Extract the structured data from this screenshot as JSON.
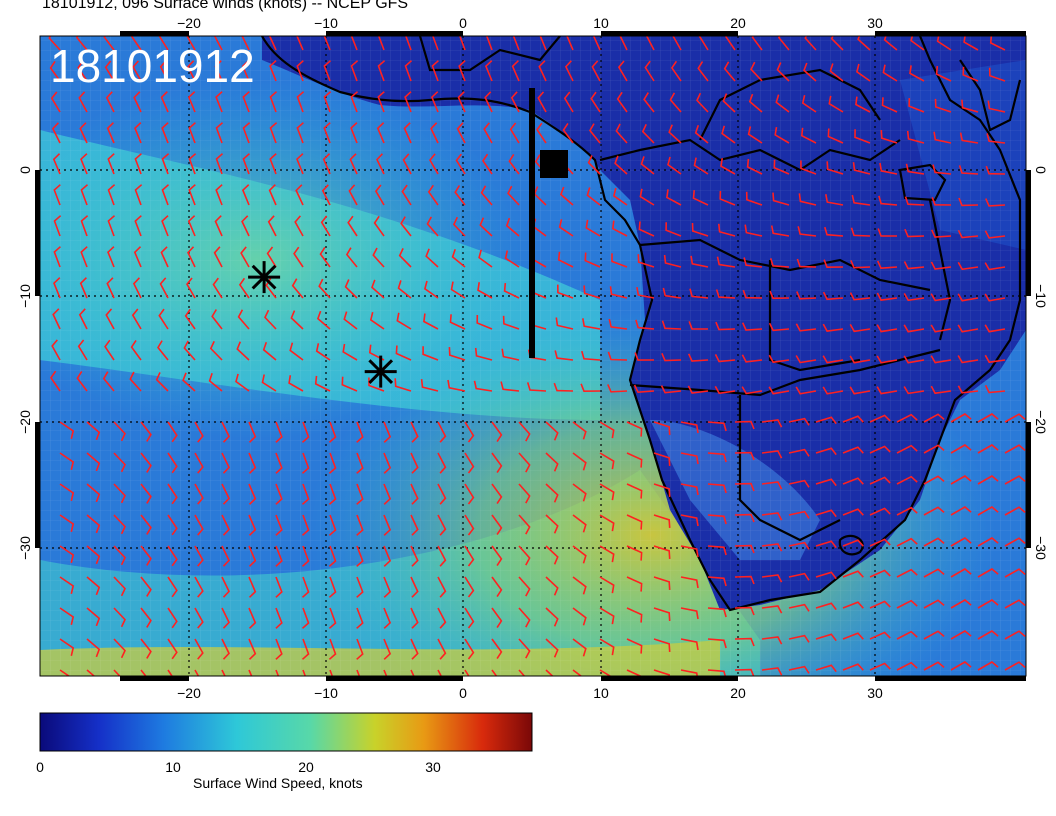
{
  "title": "18101912, 096 Surface winds (knots) -- NCEP GFS",
  "stamp": "18101912",
  "lon_ticks": [
    "−20",
    "−10",
    "0",
    "10",
    "20",
    "30"
  ],
  "lat_ticks": [
    "0",
    "−10",
    "−20",
    "−30"
  ],
  "colorbar": {
    "caption": "Surface Wind Speed, knots",
    "ticks": [
      "0",
      "10",
      "20",
      "30"
    ],
    "range": [
      0,
      37
    ],
    "colors": [
      "#0a0a7a",
      "#1530c8",
      "#1e7ae0",
      "#2ec8d8",
      "#58d8a8",
      "#c8d22a",
      "#e89a14",
      "#d82a0c",
      "#7a0808"
    ]
  },
  "barb_color": "#ff2020",
  "markers": [
    {
      "label": "asterisk",
      "lon": -14.5,
      "lat": -8.5
    },
    {
      "label": "asterisk",
      "lon": -6,
      "lat": -16
    }
  ]
}
